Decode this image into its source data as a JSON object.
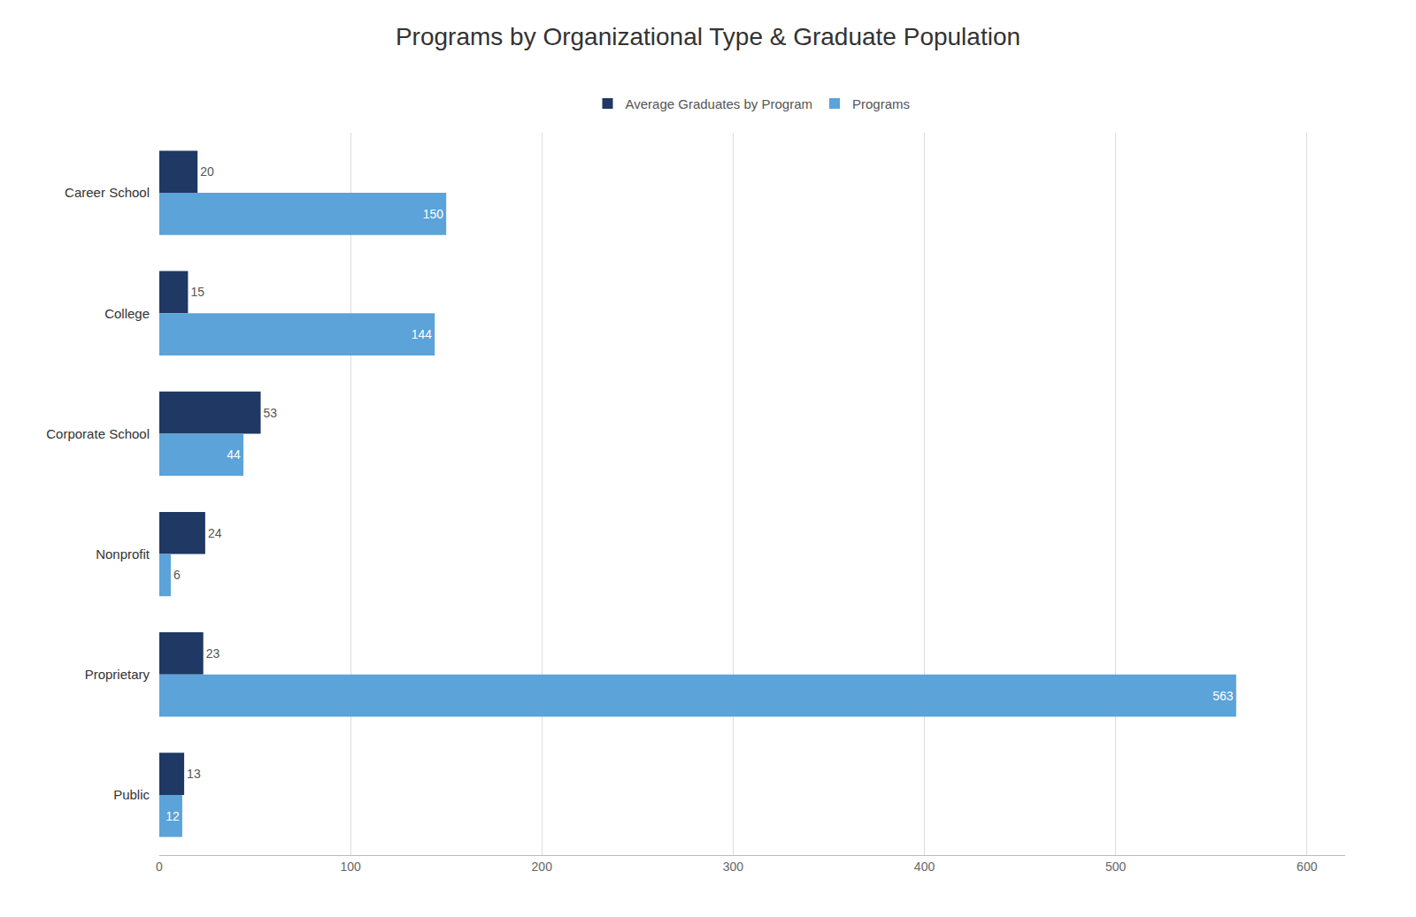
{
  "chart_data": {
    "type": "bar",
    "orientation": "horizontal",
    "title": "Programs by Organizational Type & Graduate Population",
    "categories": [
      "Career School",
      "College",
      "Corporate School",
      "Nonprofit",
      "Proprietary",
      "Public"
    ],
    "series": [
      {
        "name": "Average Graduates by Program",
        "color": "#1F3864",
        "values": [
          20,
          15,
          53,
          24,
          23,
          13
        ]
      },
      {
        "name": "Programs",
        "color": "#5BA3D9",
        "values": [
          150,
          144,
          44,
          6,
          563,
          12
        ]
      }
    ],
    "xlim": [
      0,
      620
    ],
    "xticks": [
      0,
      100,
      200,
      300,
      400,
      500,
      600
    ],
    "grid": true,
    "legend": "upper center",
    "data_labels": true
  }
}
